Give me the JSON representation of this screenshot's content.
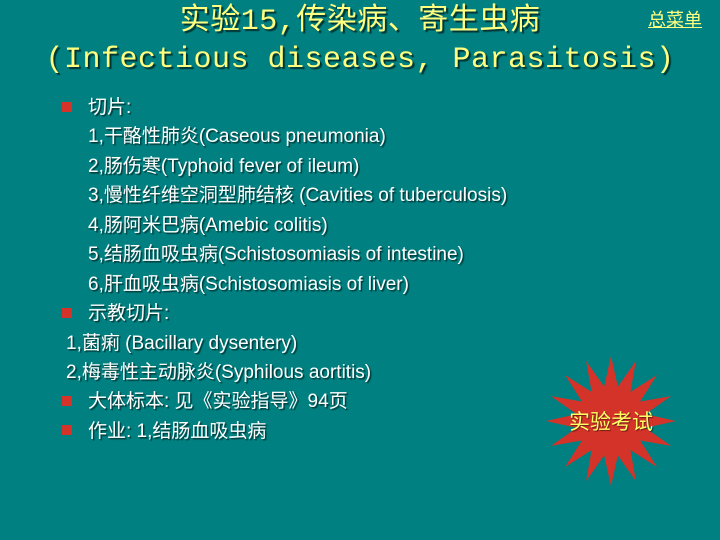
{
  "colors": {
    "background": "#008080",
    "title_color": "#ffff80",
    "text_color": "#ffffff",
    "bullet_color": "#d4332a",
    "star_fill": "#d4332a",
    "star_text": "#ffff66",
    "link_color": "#ffff80"
  },
  "typography": {
    "title_fontsize": 30,
    "body_fontsize": 19,
    "star_fontsize": 21,
    "link_fontsize": 18
  },
  "menu_link": "总菜单",
  "title_line1": "实验15,传染病、寄生虫病",
  "title_line2": "(Infectious diseases, Parasitosis)",
  "sections": {
    "slices": {
      "heading": "切片:",
      "items": [
        "1,干酪性肺炎(Caseous pneumonia)",
        "2,肠伤寒(Typhoid fever of ileum)",
        "3,慢性纤维空洞型肺结核 (Cavities of tuberculosis)",
        "4,肠阿米巴病(Amebic colitis)",
        "5,结肠血吸虫病(Schistosomiasis of intestine)",
        "6,肝血吸虫病(Schistosomiasis of liver)"
      ]
    },
    "demo": {
      "heading": "示教切片:",
      "items": [
        "1,菌痢 (Bacillary dysentery)",
        "2,梅毒性主动脉炎(Syphilous aortitis)"
      ]
    },
    "gross": "大体标本:   见《实验指导》94页",
    "homework": "作业:  1,结肠血吸虫病"
  },
  "starburst": {
    "text": "实验考试",
    "points": 16,
    "outer_r": 65,
    "inner_r": 35
  }
}
